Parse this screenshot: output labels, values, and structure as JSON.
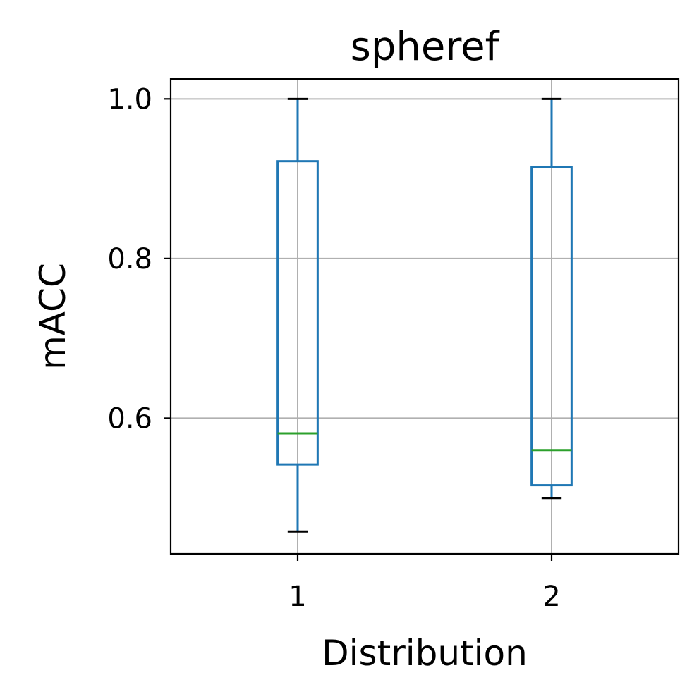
{
  "chart_data": {
    "type": "box",
    "title": "spheref",
    "xlabel": "Distribution",
    "ylabel": "mACC",
    "categories": [
      "1",
      "2"
    ],
    "ylim": [
      0.43,
      1.025
    ],
    "yticks": [
      0.6,
      0.8,
      1.0
    ],
    "ytick_labels": [
      "0.6",
      "0.8",
      "1.0"
    ],
    "grid": true,
    "boxes": [
      {
        "category": "1",
        "whisker_low": 0.458,
        "q1": 0.542,
        "median": 0.581,
        "q3": 0.922,
        "whisker_high": 1.0
      },
      {
        "category": "2",
        "whisker_low": 0.5,
        "q1": 0.516,
        "median": 0.56,
        "q3": 0.915,
        "whisker_high": 1.0
      }
    ],
    "colors": {
      "box": "#1f77b4",
      "median": "#2ca02c",
      "cap": "#000000",
      "grid": "#b0b0b0"
    }
  }
}
